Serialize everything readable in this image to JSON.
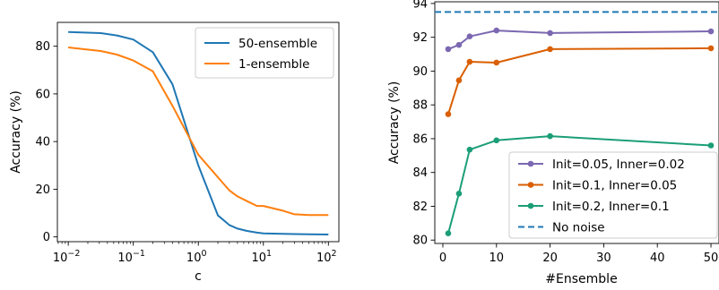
{
  "chart_data": [
    {
      "type": "line",
      "title": "",
      "xlabel": "c",
      "ylabel": "Accuracy (%)",
      "xscale": "log",
      "xlim": [
        0.0068,
        145
      ],
      "ylim": [
        -2,
        90
      ],
      "xtick_labels": [
        "10^-2",
        "10^-1",
        "10^0",
        "10^1",
        "10^2"
      ],
      "xtick_values": [
        0.01,
        0.1,
        1,
        10,
        100
      ],
      "ytick_values": [
        0,
        20,
        40,
        60,
        80
      ],
      "grid": false,
      "legend": "top-right",
      "x": [
        0.01,
        0.0316,
        0.0562,
        0.1,
        0.2,
        0.4,
        1,
        2,
        3,
        4,
        5.6,
        8,
        10,
        20,
        30,
        50,
        100
      ],
      "series": [
        {
          "name": "50-ensemble",
          "color": "#1f77b4",
          "values": [
            86,
            85.5,
            84.5,
            82.8,
            77.5,
            64,
            30,
            9,
            5,
            3.5,
            2.5,
            1.8,
            1.5,
            1.3,
            1.2,
            1.1,
            1.0
          ]
        },
        {
          "name": "1-ensemble",
          "color": "#ff7f0e",
          "values": [
            79.5,
            78,
            76.5,
            74,
            69.5,
            55,
            34.5,
            25,
            19.5,
            17,
            15,
            13,
            13,
            11,
            9.5,
            9.2,
            9.2
          ]
        }
      ]
    },
    {
      "type": "line",
      "title": "",
      "xlabel": "#Ensemble",
      "ylabel": "Accuracy (%)",
      "xlim": [
        -1.5,
        51.5
      ],
      "ylim": [
        79.8,
        94.1
      ],
      "xtick_labels": [
        "0",
        "10",
        "20",
        "30",
        "40",
        "50"
      ],
      "xtick_values": [
        0,
        10,
        20,
        30,
        40,
        50
      ],
      "ytick_values": [
        80,
        82,
        84,
        86,
        88,
        90,
        92,
        94
      ],
      "grid": false,
      "legend": "bottom-right",
      "series": [
        {
          "name": "Init=0.05, Inner=0.02",
          "color": "#7b68b0",
          "marker": "circle",
          "x": [
            1,
            3,
            5,
            10,
            20,
            50
          ],
          "values": [
            91.3,
            91.55,
            92.05,
            92.4,
            92.25,
            92.35
          ]
        },
        {
          "name": "Init=0.1, Inner=0.05",
          "color": "#d95f02",
          "marker": "circle",
          "x": [
            1,
            3,
            5,
            10,
            20,
            50
          ],
          "values": [
            87.45,
            89.45,
            90.55,
            90.5,
            91.3,
            91.35
          ]
        },
        {
          "name": "Init=0.2, Inner=0.1",
          "color": "#1b9e77",
          "marker": "circle",
          "x": [
            1,
            3,
            5,
            10,
            20,
            50
          ],
          "values": [
            80.4,
            82.75,
            85.35,
            85.9,
            86.15,
            85.6
          ]
        },
        {
          "name": "No noise",
          "color": "#1f77b4",
          "style": "dashed",
          "constant": 93.5
        }
      ]
    }
  ]
}
